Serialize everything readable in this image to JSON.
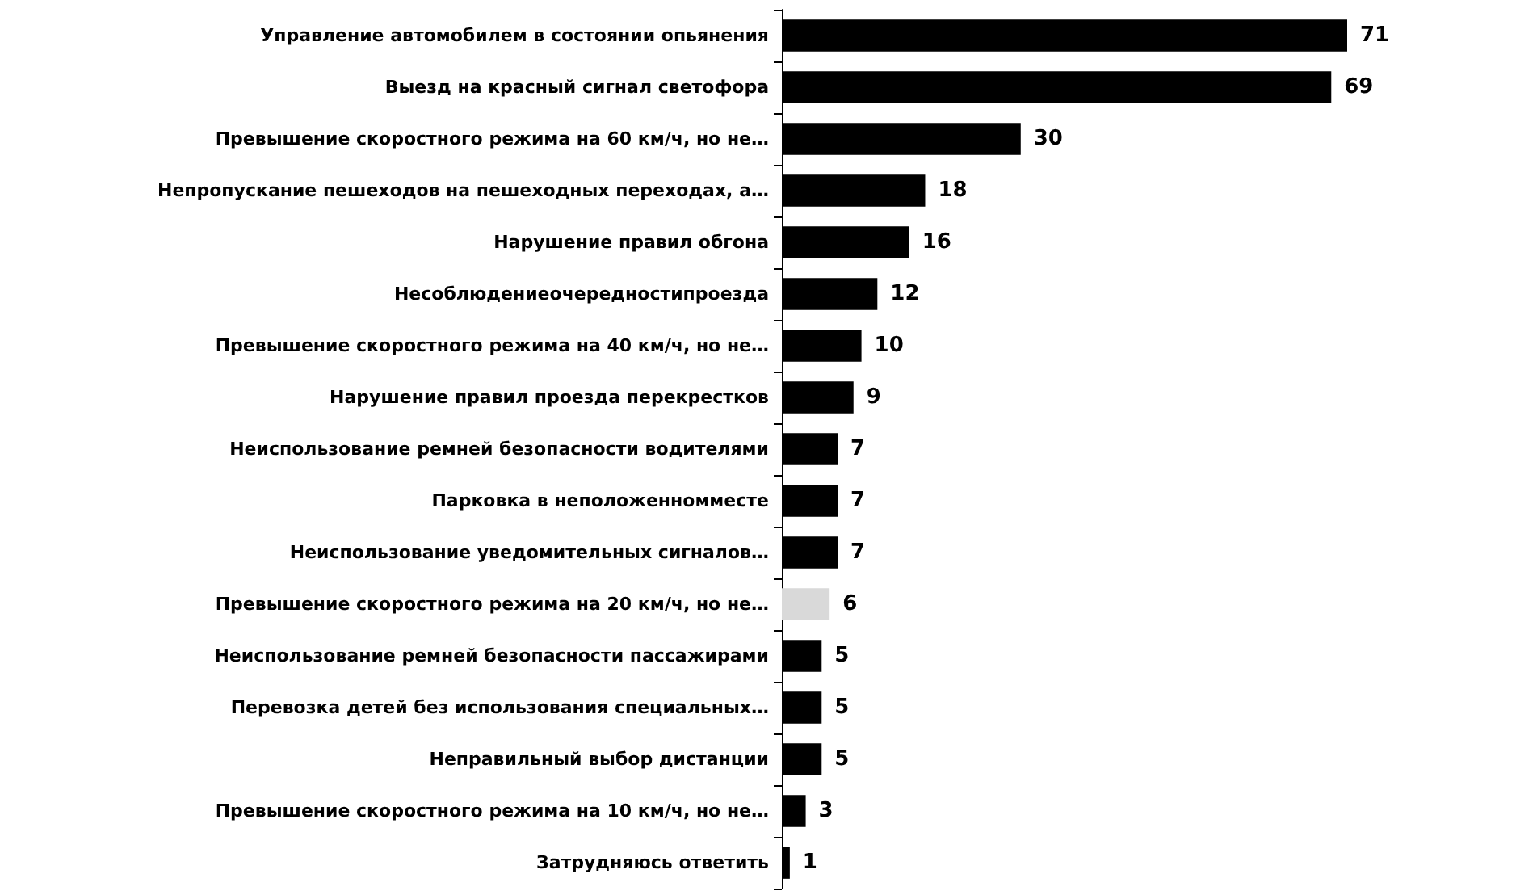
{
  "chart_data": {
    "type": "bar",
    "orientation": "horizontal",
    "data_labels": true,
    "categories": [
      "Управление автомобилем в состоянии опьянения",
      "Выезд на красный сигнал светофора",
      "Превышение скоростного режима на 60 км/ч, но не…",
      "Непропускание пешеходов на пешеходных переходах, а…",
      "Нарушение правил обгона",
      "Несоблюдениеочередностипроезда",
      "Превышение скоростного режима на 40 км/ч, но не…",
      "Нарушение правил проезда перекрестков",
      "Неиспользование ремней безопасности водителями",
      "Парковка в неположенномместе",
      "Неиспользование уведомительных сигналов…",
      "Превышение скоростного режима на 20 км/ч, но не…",
      "Неиспользование ремней безопасности пассажирами",
      "Перевозка детей без использования специальных…",
      "Неправильный выбор дистанции",
      "Превышение скоростного режима на 10 км/ч, но не…",
      "Затрудняюсь ответить"
    ],
    "values": [
      71,
      69,
      30,
      18,
      16,
      12,
      10,
      9,
      7,
      7,
      7,
      6,
      5,
      5,
      5,
      3,
      1
    ],
    "colors": [
      "#000000",
      "#000000",
      "#000000",
      "#000000",
      "#000000",
      "#000000",
      "#000000",
      "#000000",
      "#000000",
      "#000000",
      "#000000",
      "#d9d9d9",
      "#000000",
      "#000000",
      "#000000",
      "#000000",
      "#000000"
    ]
  }
}
